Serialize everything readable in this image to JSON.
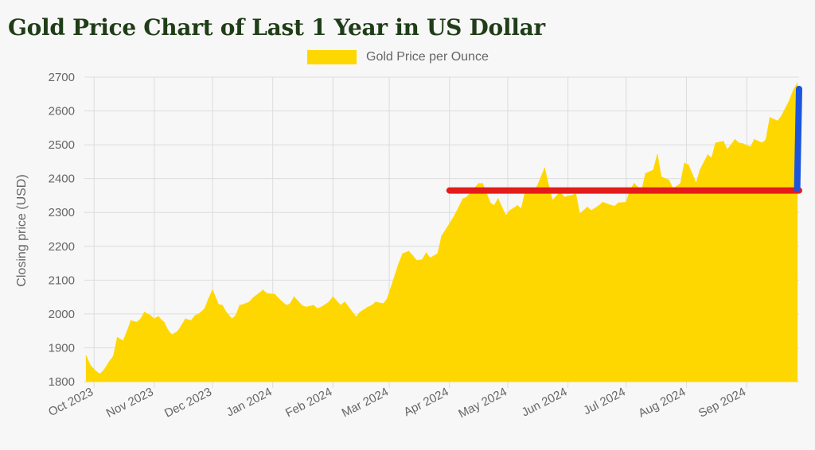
{
  "chart_data": {
    "type": "area",
    "title": "Gold Price Chart of Last 1 Year in US Dollar",
    "ylabel": "Closing price (USD)",
    "xlabel": "",
    "series": [
      {
        "name": "Gold Price per Ounce",
        "color": "#ffd700",
        "points": [
          [
            "2023-09-27",
            1875
          ],
          [
            "2023-09-29",
            1848
          ],
          [
            "2023-10-02",
            1830
          ],
          [
            "2023-10-04",
            1822
          ],
          [
            "2023-10-06",
            1833
          ],
          [
            "2023-10-09",
            1860
          ],
          [
            "2023-10-11",
            1875
          ],
          [
            "2023-10-13",
            1930
          ],
          [
            "2023-10-16",
            1920
          ],
          [
            "2023-10-18",
            1948
          ],
          [
            "2023-10-20",
            1980
          ],
          [
            "2023-10-23",
            1975
          ],
          [
            "2023-10-25",
            1985
          ],
          [
            "2023-10-27",
            2005
          ],
          [
            "2023-10-30",
            1995
          ],
          [
            "2023-11-01",
            1985
          ],
          [
            "2023-11-03",
            1992
          ],
          [
            "2023-11-06",
            1975
          ],
          [
            "2023-11-08",
            1952
          ],
          [
            "2023-11-10",
            1938
          ],
          [
            "2023-11-13",
            1948
          ],
          [
            "2023-11-15",
            1965
          ],
          [
            "2023-11-17",
            1985
          ],
          [
            "2023-11-20",
            1980
          ],
          [
            "2023-11-22",
            1995
          ],
          [
            "2023-11-24",
            2000
          ],
          [
            "2023-11-27",
            2015
          ],
          [
            "2023-11-29",
            2045
          ],
          [
            "2023-12-01",
            2070
          ],
          [
            "2023-12-04",
            2028
          ],
          [
            "2023-12-06",
            2025
          ],
          [
            "2023-12-08",
            2005
          ],
          [
            "2023-12-11",
            1985
          ],
          [
            "2023-12-13",
            1995
          ],
          [
            "2023-12-15",
            2025
          ],
          [
            "2023-12-18",
            2030
          ],
          [
            "2023-12-20",
            2035
          ],
          [
            "2023-12-22",
            2048
          ],
          [
            "2023-12-27",
            2070
          ],
          [
            "2023-12-29",
            2060
          ],
          [
            "2024-01-02",
            2058
          ],
          [
            "2024-01-04",
            2045
          ],
          [
            "2024-01-08",
            2025
          ],
          [
            "2024-01-10",
            2030
          ],
          [
            "2024-01-12",
            2050
          ],
          [
            "2024-01-16",
            2025
          ],
          [
            "2024-01-18",
            2020
          ],
          [
            "2024-01-22",
            2025
          ],
          [
            "2024-01-24",
            2015
          ],
          [
            "2024-01-26",
            2020
          ],
          [
            "2024-01-30",
            2035
          ],
          [
            "2024-02-01",
            2050
          ],
          [
            "2024-02-05",
            2025
          ],
          [
            "2024-02-07",
            2035
          ],
          [
            "2024-02-09",
            2020
          ],
          [
            "2024-02-13",
            1990
          ],
          [
            "2024-02-15",
            2005
          ],
          [
            "2024-02-19",
            2020
          ],
          [
            "2024-02-21",
            2025
          ],
          [
            "2024-02-23",
            2035
          ],
          [
            "2024-02-27",
            2030
          ],
          [
            "2024-02-29",
            2045
          ],
          [
            "2024-03-04",
            2115
          ],
          [
            "2024-03-06",
            2150
          ],
          [
            "2024-03-08",
            2178
          ],
          [
            "2024-03-11",
            2185
          ],
          [
            "2024-03-13",
            2172
          ],
          [
            "2024-03-15",
            2158
          ],
          [
            "2024-03-18",
            2160
          ],
          [
            "2024-03-20",
            2180
          ],
          [
            "2024-03-22",
            2165
          ],
          [
            "2024-03-26",
            2178
          ],
          [
            "2024-03-28",
            2230
          ],
          [
            "2024-04-02",
            2275
          ],
          [
            "2024-04-04",
            2295
          ],
          [
            "2024-04-08",
            2340
          ],
          [
            "2024-04-10",
            2345
          ],
          [
            "2024-04-12",
            2360
          ],
          [
            "2024-04-16",
            2385
          ],
          [
            "2024-04-18",
            2385
          ],
          [
            "2024-04-22",
            2328
          ],
          [
            "2024-04-24",
            2320
          ],
          [
            "2024-04-26",
            2340
          ],
          [
            "2024-04-30",
            2290
          ],
          [
            "2024-05-02",
            2305
          ],
          [
            "2024-05-06",
            2320
          ],
          [
            "2024-05-08",
            2310
          ],
          [
            "2024-05-10",
            2360
          ],
          [
            "2024-05-14",
            2355
          ],
          [
            "2024-05-16",
            2375
          ],
          [
            "2024-05-20",
            2430
          ],
          [
            "2024-05-22",
            2380
          ],
          [
            "2024-05-24",
            2335
          ],
          [
            "2024-05-28",
            2360
          ],
          [
            "2024-05-30",
            2345
          ],
          [
            "2024-06-03",
            2350
          ],
          [
            "2024-06-05",
            2355
          ],
          [
            "2024-06-07",
            2295
          ],
          [
            "2024-06-11",
            2315
          ],
          [
            "2024-06-13",
            2305
          ],
          [
            "2024-06-17",
            2320
          ],
          [
            "2024-06-19",
            2330
          ],
          [
            "2024-06-21",
            2325
          ],
          [
            "2024-06-25",
            2318
          ],
          [
            "2024-06-27",
            2328
          ],
          [
            "2024-07-01",
            2330
          ],
          [
            "2024-07-03",
            2365
          ],
          [
            "2024-07-05",
            2385
          ],
          [
            "2024-07-09",
            2365
          ],
          [
            "2024-07-11",
            2415
          ],
          [
            "2024-07-15",
            2425
          ],
          [
            "2024-07-17",
            2470
          ],
          [
            "2024-07-19",
            2405
          ],
          [
            "2024-07-23",
            2395
          ],
          [
            "2024-07-25",
            2370
          ],
          [
            "2024-07-29",
            2385
          ],
          [
            "2024-07-31",
            2445
          ],
          [
            "2024-08-02",
            2440
          ],
          [
            "2024-08-06",
            2385
          ],
          [
            "2024-08-08",
            2425
          ],
          [
            "2024-08-12",
            2470
          ],
          [
            "2024-08-14",
            2460
          ],
          [
            "2024-08-16",
            2505
          ],
          [
            "2024-08-20",
            2510
          ],
          [
            "2024-08-22",
            2485
          ],
          [
            "2024-08-26",
            2515
          ],
          [
            "2024-08-28",
            2505
          ],
          [
            "2024-08-30",
            2503
          ],
          [
            "2024-09-03",
            2493
          ],
          [
            "2024-09-05",
            2515
          ],
          [
            "2024-09-09",
            2505
          ],
          [
            "2024-09-11",
            2515
          ],
          [
            "2024-09-13",
            2580
          ],
          [
            "2024-09-17",
            2570
          ],
          [
            "2024-09-19",
            2585
          ],
          [
            "2024-09-23",
            2630
          ],
          [
            "2024-09-25",
            2660
          ],
          [
            "2024-09-27",
            2680
          ]
        ]
      }
    ],
    "ylim": [
      1800,
      2700
    ],
    "yticks": [
      1800,
      1900,
      2000,
      2100,
      2200,
      2300,
      2400,
      2500,
      2600,
      2700
    ],
    "xlim": [
      "2023-09-26",
      "2024-09-28"
    ],
    "xticks": [
      {
        "date": "2023-10-01",
        "label": "Oct 2023"
      },
      {
        "date": "2023-11-01",
        "label": "Nov 2023"
      },
      {
        "date": "2023-12-01",
        "label": "Dec 2023"
      },
      {
        "date": "2024-01-01",
        "label": "Jan 2024"
      },
      {
        "date": "2024-02-01",
        "label": "Feb 2024"
      },
      {
        "date": "2024-03-01",
        "label": "Mar 2024"
      },
      {
        "date": "2024-04-01",
        "label": "Apr 2024"
      },
      {
        "date": "2024-05-01",
        "label": "May 2024"
      },
      {
        "date": "2024-06-01",
        "label": "Jun 2024"
      },
      {
        "date": "2024-07-01",
        "label": "Jul 2024"
      },
      {
        "date": "2024-08-01",
        "label": "Aug 2024"
      },
      {
        "date": "2024-09-01",
        "label": "Sep 2024"
      }
    ],
    "grid": true,
    "legend": "top-center",
    "annotations": [
      {
        "type": "hand-drawn-line",
        "color": "#e41b1b",
        "points": [
          [
            "2024-04-01",
            2365
          ],
          [
            "2024-09-28",
            2365
          ]
        ]
      },
      {
        "type": "hand-drawn-line",
        "color": "#1c55dc",
        "points": [
          [
            "2024-09-27",
            2370
          ],
          [
            "2024-09-28",
            2665
          ]
        ]
      }
    ]
  }
}
